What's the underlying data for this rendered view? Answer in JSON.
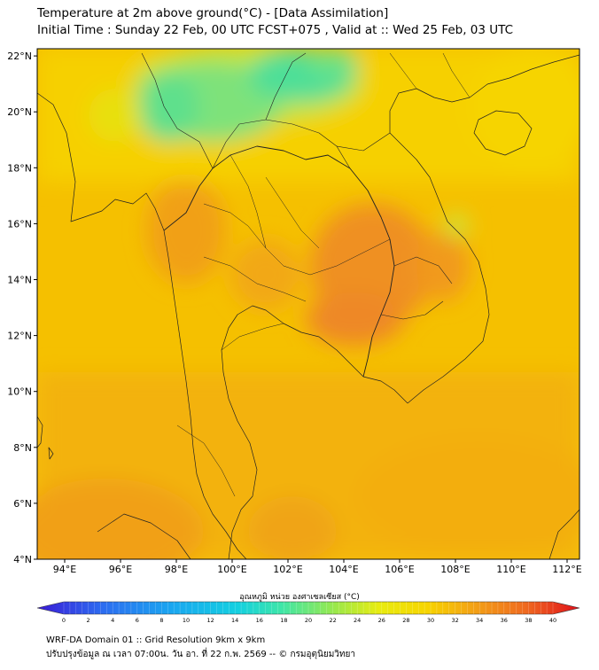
{
  "title": {
    "line1": "Temperature at 2m above ground(°C) - [Data Assimilation]",
    "line2": "Initial Time : Sunday 22 Feb, 00 UTC FCST+075 , Valid at :: Wed 25 Feb, 03 UTC"
  },
  "map": {
    "lat_ticks": [
      "4°N",
      "6°N",
      "8°N",
      "10°N",
      "12°N",
      "14°N",
      "16°N",
      "18°N",
      "20°N",
      "22°N"
    ],
    "lon_ticks": [
      "94°E",
      "96°E",
      "98°E",
      "100°E",
      "102°E",
      "104°E",
      "106°E",
      "108°E",
      "110°E",
      "112°E"
    ]
  },
  "colorbar": {
    "label": "อุณหภูมิ หน่วย องศาเซลเซียส (°C)",
    "ticks": [
      "0",
      "2",
      "4",
      "6",
      "8",
      "10",
      "12",
      "14",
      "16",
      "18",
      "20",
      "22",
      "24",
      "26",
      "28",
      "30",
      "32",
      "34",
      "36",
      "38",
      "40"
    ]
  },
  "footer": {
    "line1": "WRF-DA Domain 01 :: Grid Resolution 9km x 9km",
    "line2": "ปรับปรุงข้อมูล ณ เวลา 07:00น. วัน อา. ที่ 22 ก.พ. 2569 -- © กรมอุตุนิยมวิทยา"
  },
  "colors": {
    "base": "#f5c800",
    "warm": "#f3a414",
    "hot": "#ef8a28",
    "cool": "#b8e04a",
    "cold": "#5ee08c"
  }
}
